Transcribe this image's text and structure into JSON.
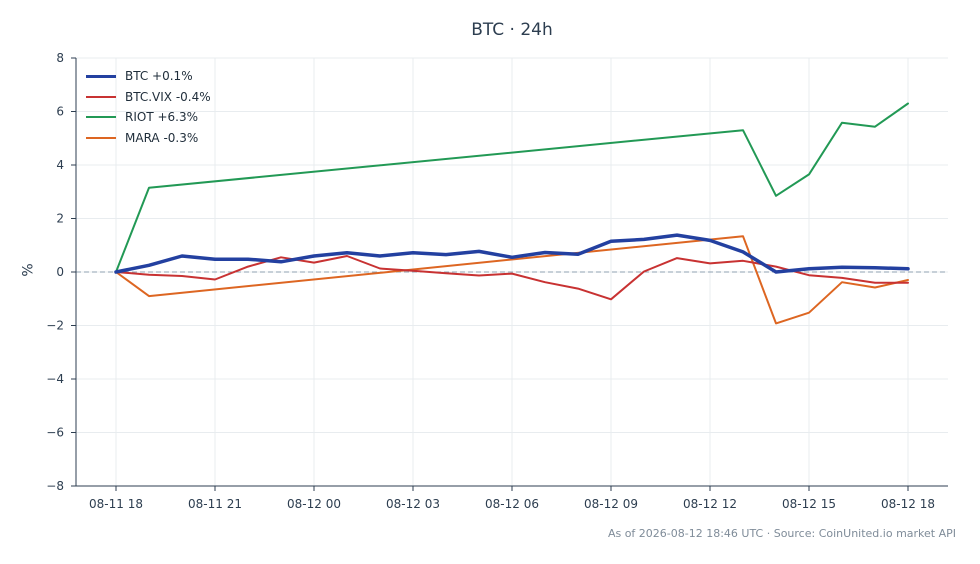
{
  "chart_data": {
    "type": "line",
    "title": "BTC · 24h",
    "xlabel": "",
    "ylabel": "%",
    "footer": "As of 2026-08-12 18:46 UTC · Source: CoinUnited.io market API",
    "x": [
      "08-11 18",
      "08-11 19",
      "08-11 20",
      "08-11 21",
      "08-11 22",
      "08-11 23",
      "08-12 00",
      "08-12 01",
      "08-12 02",
      "08-12 03",
      "08-12 04",
      "08-12 05",
      "08-12 06",
      "08-12 07",
      "08-12 08",
      "08-12 09",
      "08-12 10",
      "08-12 11",
      "08-12 12",
      "08-12 13",
      "08-12 14",
      "08-12 15",
      "08-12 16",
      "08-12 17",
      "08-12 18"
    ],
    "x_ticks": [
      "08-11 18",
      "08-11 21",
      "08-12 00",
      "08-12 03",
      "08-12 06",
      "08-12 09",
      "08-12 12",
      "08-12 15",
      "08-12 18"
    ],
    "y_ticks": [
      8,
      6,
      4,
      2,
      0,
      -2,
      -4,
      -6,
      -8
    ],
    "ylim": [
      -8,
      8
    ],
    "grid": true,
    "reference_line": 0,
    "legend_position": "top-left",
    "series": [
      {
        "name": "BTC +0.1%",
        "color": "#2340a0",
        "width": 3.5,
        "values": [
          0.0,
          0.25,
          0.6,
          0.48,
          0.48,
          0.38,
          0.6,
          0.72,
          0.6,
          0.72,
          0.65,
          0.77,
          0.55,
          0.73,
          0.66,
          1.15,
          1.22,
          1.38,
          1.18,
          0.75,
          0.0,
          0.12,
          0.18,
          0.16,
          0.12
        ]
      },
      {
        "name": "BTC.VIX -0.4%",
        "color": "#c83232",
        "width": 2,
        "values": [
          0.0,
          -0.1,
          -0.15,
          -0.28,
          0.2,
          0.55,
          0.35,
          0.6,
          0.13,
          0.05,
          -0.05,
          -0.13,
          -0.06,
          -0.38,
          -0.62,
          -1.02,
          0.02,
          0.52,
          0.32,
          0.42,
          0.2,
          -0.12,
          -0.22,
          -0.4,
          -0.4
        ]
      },
      {
        "name": "RIOT +6.3%",
        "color": "#229955",
        "width": 2,
        "values": [
          0.0,
          3.15,
          null,
          null,
          null,
          null,
          null,
          null,
          null,
          null,
          null,
          null,
          null,
          null,
          null,
          null,
          null,
          null,
          null,
          5.3,
          2.85,
          3.65,
          5.58,
          5.43,
          6.3
        ],
        "connect_gaps": true
      },
      {
        "name": "MARA -0.3%",
        "color": "#dd6622",
        "width": 2,
        "values": [
          0.0,
          -0.9,
          null,
          null,
          null,
          null,
          null,
          null,
          null,
          null,
          null,
          null,
          null,
          null,
          null,
          null,
          null,
          null,
          null,
          1.34,
          -1.92,
          -1.52,
          -0.38,
          -0.58,
          -0.3
        ],
        "connect_gaps": true
      }
    ]
  },
  "colors": {
    "axis": "#2d3e50",
    "grid": "#e8ecef",
    "reference": "#8fa0b0",
    "text": "#2d3e50"
  }
}
